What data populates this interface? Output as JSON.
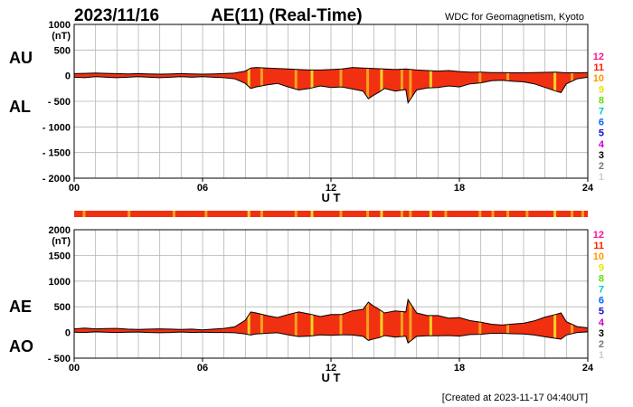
{
  "header": {
    "date": "2023/11/16",
    "title": "AE(11) (Real-Time)",
    "source": "WDC for Geomagnetism, Kyoto"
  },
  "footer": {
    "created": "[Created at 2023-11-17 04:40UT]"
  },
  "colors": {
    "fill": "#f03010",
    "stripe": "#f7a020",
    "stripe_light": "#f6d22a",
    "line": "#000000",
    "grid": "#b4b4b4"
  },
  "station_scale": [
    {
      "label": "12",
      "color": "#ff1493"
    },
    {
      "label": "11",
      "color": "#ff2200"
    },
    {
      "label": "10",
      "color": "#ff9900"
    },
    {
      "label": "9",
      "color": "#e6e600"
    },
    {
      "label": "8",
      "color": "#66dd00"
    },
    {
      "label": "7",
      "color": "#00cccc"
    },
    {
      "label": "6",
      "color": "#0066ff"
    },
    {
      "label": "5",
      "color": "#1111cc"
    },
    {
      "label": "4",
      "color": "#cc00cc"
    },
    {
      "label": "3",
      "color": "#000000"
    },
    {
      "label": "2",
      "color": "#777777"
    },
    {
      "label": "1",
      "color": "#cccccc"
    }
  ],
  "chart_data": [
    {
      "type": "area",
      "panel": "AU/AL",
      "label_upper": "AU",
      "label_lower": "AL",
      "ylabel": "(nT)",
      "ylim": [
        -2000,
        1000
      ],
      "yticks": [
        1000,
        500,
        0,
        -500,
        -1000,
        -1500,
        -2000
      ],
      "ytick_labels": [
        "1000",
        "500",
        "0",
        "- 500",
        "- 1000",
        "- 1500",
        "- 2000"
      ],
      "xlim": [
        0,
        24
      ],
      "xticks": [
        0,
        6,
        12,
        18,
        24
      ],
      "xtick_labels": [
        "00",
        "06",
        "12",
        "18",
        "24"
      ],
      "xlabel": "U T",
      "grid": true,
      "series": [
        {
          "name": "AU",
          "x": [
            0,
            0.5,
            1,
            1.5,
            2,
            2.5,
            3,
            3.5,
            4,
            4.5,
            5,
            5.5,
            6,
            6.5,
            7,
            7.5,
            8,
            8.25,
            8.5,
            9,
            9.5,
            10,
            10.5,
            11,
            11.5,
            12,
            12.5,
            13,
            13.5,
            14,
            14.5,
            15,
            15.5,
            16,
            16.5,
            17,
            17.5,
            18,
            18.5,
            19,
            19.5,
            20,
            20.5,
            21,
            21.5,
            22,
            22.5,
            23,
            23.5,
            24
          ],
          "y": [
            40,
            45,
            50,
            45,
            40,
            35,
            40,
            35,
            30,
            35,
            40,
            35,
            30,
            35,
            40,
            50,
            90,
            150,
            160,
            150,
            140,
            130,
            120,
            110,
            110,
            120,
            130,
            160,
            150,
            140,
            130,
            120,
            130,
            110,
            100,
            90,
            100,
            80,
            70,
            70,
            60,
            60,
            55,
            55,
            60,
            65,
            70,
            55,
            55,
            60
          ]
        },
        {
          "name": "AL",
          "x": [
            0,
            0.5,
            1,
            1.5,
            2,
            2.5,
            3,
            3.5,
            4,
            4.5,
            5,
            5.5,
            6,
            6.5,
            7,
            7.5,
            8,
            8.25,
            8.5,
            9,
            9.5,
            10,
            10.5,
            11,
            11.5,
            12,
            12.5,
            13,
            13.5,
            13.75,
            14,
            14.25,
            14.5,
            15,
            15.5,
            15.6,
            16,
            16.5,
            17,
            17.5,
            18,
            18.5,
            19,
            19.5,
            20,
            20.5,
            21,
            21.5,
            22,
            22.5,
            22.75,
            23,
            23.5,
            24
          ],
          "y": [
            -30,
            -40,
            -20,
            -30,
            -40,
            -30,
            -20,
            -30,
            -40,
            -30,
            -20,
            -30,
            -20,
            -30,
            -40,
            -60,
            -150,
            -250,
            -220,
            -180,
            -150,
            -220,
            -280,
            -250,
            -200,
            -230,
            -220,
            -260,
            -300,
            -450,
            -380,
            -320,
            -250,
            -300,
            -270,
            -530,
            -280,
            -240,
            -230,
            -200,
            -220,
            -160,
            -140,
            -100,
            -90,
            -110,
            -120,
            -160,
            -230,
            -300,
            -330,
            -160,
            -60,
            -30
          ]
        }
      ]
    },
    {
      "type": "area",
      "panel": "AE/AO",
      "label_upper": "AE",
      "label_lower": "AO",
      "ylabel": "(nT)",
      "ylim": [
        -500,
        2000
      ],
      "yticks": [
        2000,
        1500,
        1000,
        500,
        0,
        -500
      ],
      "ytick_labels": [
        "2000",
        "1500",
        "1000",
        "500",
        "0",
        "- 500"
      ],
      "xlim": [
        0,
        24
      ],
      "xticks": [
        0,
        6,
        12,
        18,
        24
      ],
      "xtick_labels": [
        "00",
        "06",
        "12",
        "18",
        "24"
      ],
      "xlabel": "U T",
      "grid": true,
      "series": [
        {
          "name": "AE",
          "x": [
            0,
            0.5,
            1,
            1.5,
            2,
            2.5,
            3,
            3.5,
            4,
            4.5,
            5,
            5.5,
            6,
            6.5,
            7,
            7.5,
            8,
            8.25,
            8.5,
            9,
            9.5,
            10,
            10.5,
            11,
            11.5,
            12,
            12.5,
            13,
            13.5,
            13.75,
            14,
            14.25,
            14.5,
            15,
            15.5,
            15.6,
            16,
            16.5,
            17,
            17.5,
            18,
            18.5,
            19,
            19.5,
            20,
            20.5,
            21,
            21.5,
            22,
            22.5,
            22.75,
            23,
            23.5,
            24
          ],
          "y": [
            70,
            85,
            70,
            75,
            80,
            65,
            60,
            65,
            70,
            65,
            60,
            65,
            50,
            65,
            80,
            110,
            240,
            400,
            380,
            330,
            290,
            350,
            400,
            360,
            310,
            350,
            350,
            420,
            450,
            590,
            510,
            450,
            380,
            420,
            400,
            640,
            380,
            330,
            330,
            280,
            290,
            230,
            200,
            160,
            145,
            165,
            180,
            225,
            300,
            350,
            380,
            210,
            115,
            90
          ]
        },
        {
          "name": "AO",
          "x": [
            0,
            0.5,
            1,
            1.5,
            2,
            2.5,
            3,
            3.5,
            4,
            4.5,
            5,
            5.5,
            6,
            6.5,
            7,
            7.5,
            8,
            8.25,
            8.5,
            9,
            9.5,
            10,
            10.5,
            11,
            11.5,
            12,
            12.5,
            13,
            13.5,
            13.75,
            14,
            14.25,
            14.5,
            15,
            15.5,
            15.6,
            16,
            16.5,
            17,
            17.5,
            18,
            18.5,
            19,
            19.5,
            20,
            20.5,
            21,
            21.5,
            22,
            22.5,
            22.75,
            23,
            23.5,
            24
          ],
          "y": [
            5,
            0,
            15,
            5,
            0,
            5,
            10,
            0,
            -5,
            0,
            10,
            0,
            5,
            0,
            0,
            -5,
            -30,
            -50,
            -30,
            -15,
            -5,
            -45,
            -80,
            -70,
            -45,
            -55,
            -45,
            -50,
            -75,
            -155,
            -125,
            -100,
            -60,
            -90,
            -70,
            -205,
            -75,
            -65,
            -65,
            -60,
            -70,
            -40,
            -35,
            -15,
            -15,
            -25,
            -30,
            -50,
            -85,
            -115,
            -130,
            -50,
            0,
            15
          ]
        }
      ]
    }
  ]
}
